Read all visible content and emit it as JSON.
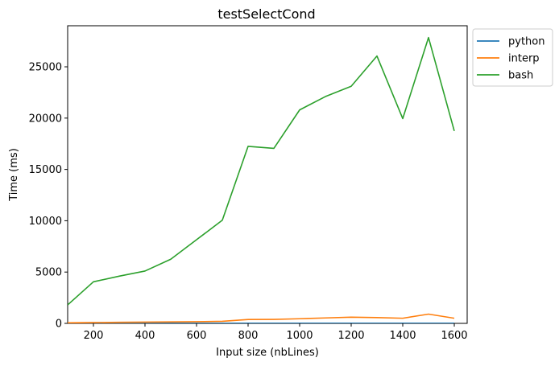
{
  "chart_data": {
    "type": "line",
    "title": "testSelectCond",
    "xlabel": "Input size (nbLines)",
    "ylabel": "Time (ms)",
    "xlim": [
      100,
      1650
    ],
    "ylim": [
      0,
      29000
    ],
    "xticks": [
      200,
      400,
      600,
      800,
      1000,
      1200,
      1400,
      1600
    ],
    "yticks": [
      0,
      5000,
      10000,
      15000,
      20000,
      25000
    ],
    "grid": false,
    "legend_position": "outside-top-right",
    "x": [
      100,
      200,
      300,
      400,
      500,
      600,
      700,
      800,
      900,
      1000,
      1100,
      1200,
      1300,
      1400,
      1500,
      1600
    ],
    "series": [
      {
        "name": "python",
        "color": "#1f77b4",
        "values": [
          20,
          20,
          20,
          20,
          20,
          20,
          20,
          20,
          20,
          20,
          20,
          20,
          20,
          20,
          20,
          20
        ]
      },
      {
        "name": "interp",
        "color": "#ff7f0e",
        "values": [
          50,
          80,
          100,
          120,
          140,
          160,
          200,
          380,
          390,
          450,
          530,
          600,
          560,
          500,
          900,
          500
        ]
      },
      {
        "name": "bash",
        "color": "#2ca02c",
        "values": [
          1800,
          4050,
          4600,
          5100,
          6250,
          8150,
          10050,
          17250,
          17050,
          20800,
          22100,
          23100,
          26050,
          19950,
          27850,
          18750
        ]
      }
    ]
  }
}
